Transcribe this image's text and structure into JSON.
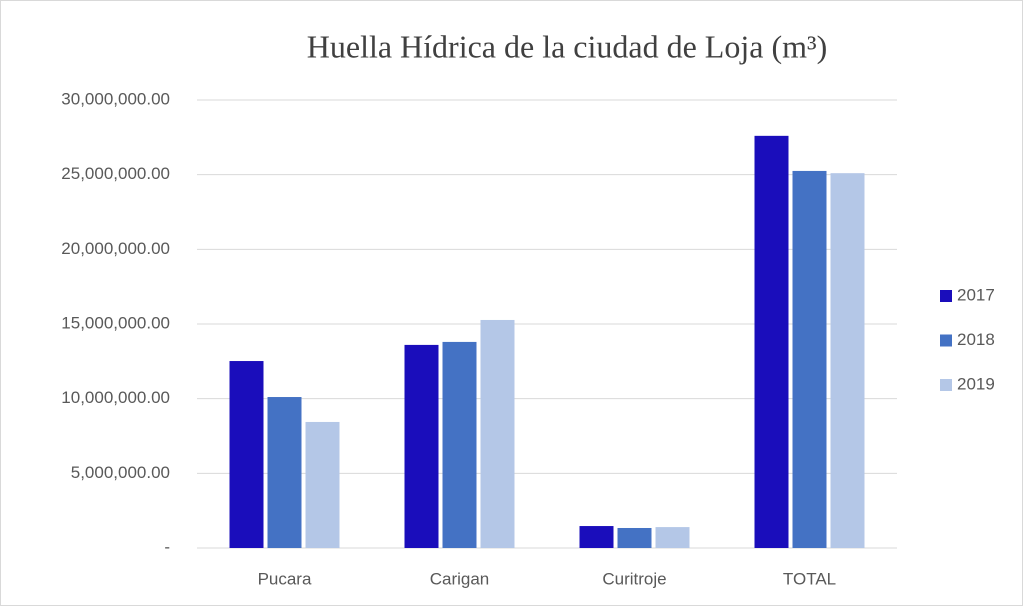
{
  "chart_data": {
    "type": "bar",
    "title": "Huella Hídrica de la ciudad de Loja (m³)",
    "categories": [
      "Pucara",
      "Carigan",
      "Curitroje",
      "TOTAL"
    ],
    "series": [
      {
        "name": "2017",
        "color": "#1a0dbb",
        "values": [
          12520000,
          13600000,
          1470000,
          27600000
        ]
      },
      {
        "name": "2018",
        "color": "#4472c4",
        "values": [
          10110000,
          13800000,
          1340000,
          25250000
        ]
      },
      {
        "name": "2019",
        "color": "#b4c7e7",
        "values": [
          8440000,
          15270000,
          1400000,
          25100000
        ]
      }
    ],
    "ylim": [
      0,
      30000000
    ],
    "yticks": [
      {
        "value": 0,
        "label": "-"
      },
      {
        "value": 5000000,
        "label": "5,000,000.00"
      },
      {
        "value": 10000000,
        "label": "10,000,000.00"
      },
      {
        "value": 15000000,
        "label": "15,000,000.00"
      },
      {
        "value": 20000000,
        "label": "20,000,000.00"
      },
      {
        "value": 25000000,
        "label": "25,000,000.00"
      },
      {
        "value": 30000000,
        "label": "30,000,000.00"
      }
    ],
    "grid": true,
    "legend": "right"
  }
}
